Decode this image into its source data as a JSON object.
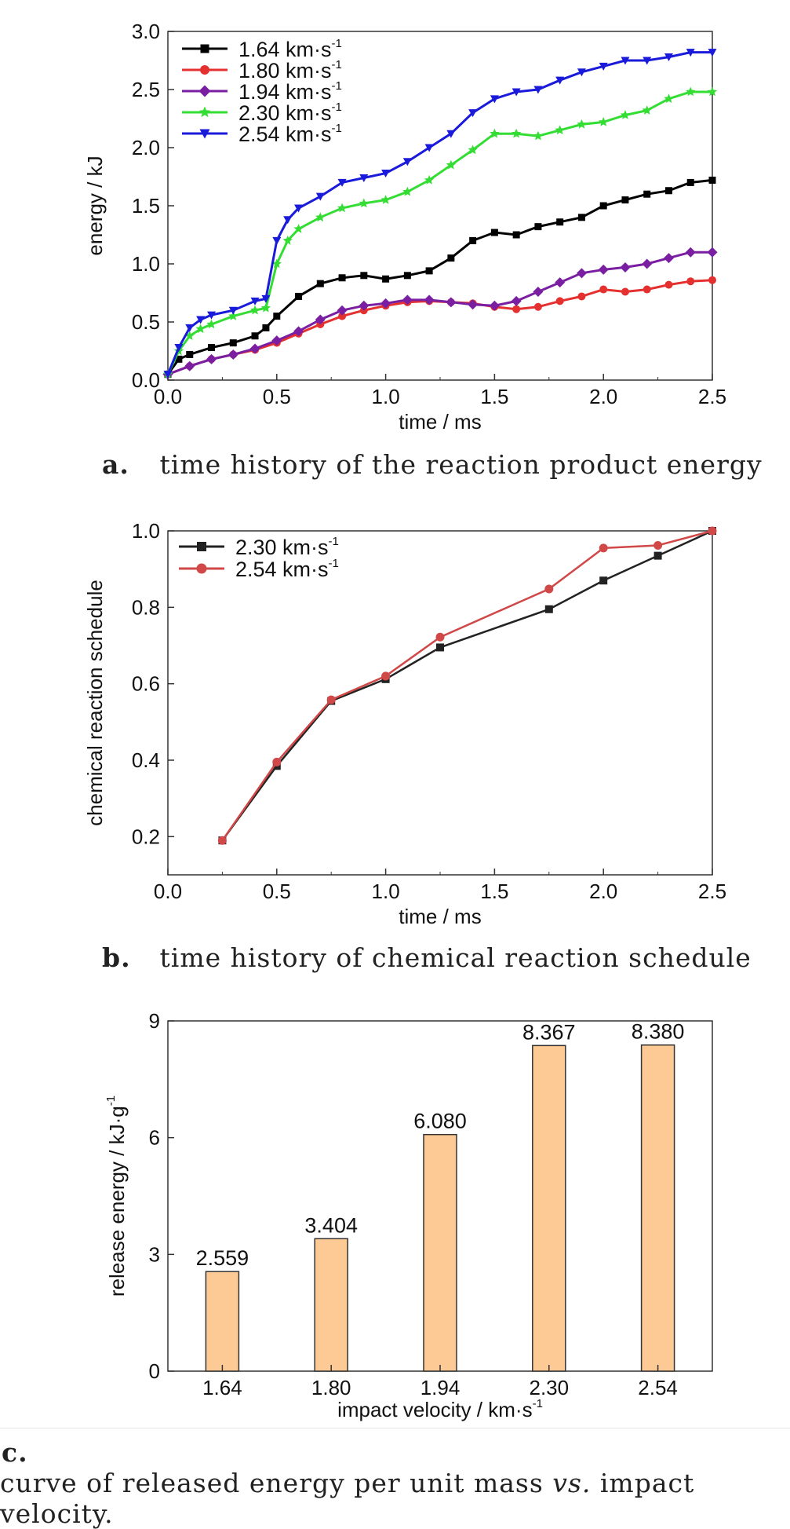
{
  "panels": [
    {
      "chart_data": {
        "type": "line",
        "xlabel": "time / ms",
        "ylabel": "energy / kJ",
        "xlim": [
          0,
          2.5
        ],
        "ylim": [
          0,
          3.0
        ],
        "xticks": [
          "0.0",
          "0.5",
          "1.0",
          "1.5",
          "2.0",
          "2.5"
        ],
        "yticks": [
          "0.0",
          "0.5",
          "1.0",
          "1.5",
          "2.0",
          "2.5",
          "3.0"
        ],
        "legend_position": "top-left",
        "series": [
          {
            "name": "1.64 km·s⁻¹",
            "color": "#000000",
            "marker": "square",
            "x": [
              0,
              0.05,
              0.1,
              0.2,
              0.3,
              0.4,
              0.45,
              0.5,
              0.6,
              0.7,
              0.8,
              0.9,
              1.0,
              1.1,
              1.2,
              1.3,
              1.4,
              1.5,
              1.6,
              1.7,
              1.8,
              1.9,
              2.0,
              2.1,
              2.2,
              2.3,
              2.4,
              2.5
            ],
            "y": [
              0.05,
              0.18,
              0.22,
              0.28,
              0.32,
              0.38,
              0.45,
              0.55,
              0.72,
              0.83,
              0.88,
              0.9,
              0.87,
              0.9,
              0.94,
              1.05,
              1.2,
              1.27,
              1.25,
              1.32,
              1.36,
              1.4,
              1.5,
              1.55,
              1.6,
              1.63,
              1.7,
              1.72
            ]
          },
          {
            "name": "1.80 km·s⁻¹",
            "color": "#e53030",
            "marker": "circle",
            "x": [
              0,
              0.1,
              0.2,
              0.3,
              0.4,
              0.5,
              0.6,
              0.7,
              0.8,
              0.9,
              1.0,
              1.1,
              1.2,
              1.3,
              1.4,
              1.5,
              1.6,
              1.7,
              1.8,
              1.9,
              2.0,
              2.1,
              2.2,
              2.3,
              2.4,
              2.5
            ],
            "y": [
              0.05,
              0.12,
              0.18,
              0.22,
              0.26,
              0.32,
              0.4,
              0.48,
              0.55,
              0.6,
              0.64,
              0.67,
              0.68,
              0.67,
              0.66,
              0.63,
              0.61,
              0.63,
              0.68,
              0.72,
              0.78,
              0.76,
              0.78,
              0.82,
              0.85,
              0.86
            ]
          },
          {
            "name": "1.94 km·s⁻¹",
            "color": "#7b1fa2",
            "marker": "diamond",
            "x": [
              0,
              0.1,
              0.2,
              0.3,
              0.4,
              0.5,
              0.6,
              0.7,
              0.8,
              0.9,
              1.0,
              1.1,
              1.2,
              1.3,
              1.4,
              1.5,
              1.6,
              1.7,
              1.8,
              1.9,
              2.0,
              2.1,
              2.2,
              2.3,
              2.4,
              2.5
            ],
            "y": [
              0.05,
              0.12,
              0.18,
              0.22,
              0.27,
              0.34,
              0.42,
              0.52,
              0.6,
              0.64,
              0.66,
              0.69,
              0.69,
              0.67,
              0.65,
              0.64,
              0.68,
              0.76,
              0.84,
              0.92,
              0.95,
              0.97,
              1.0,
              1.05,
              1.1,
              1.1
            ]
          },
          {
            "name": "2.30 km·s⁻¹",
            "color": "#33dd33",
            "marker": "star",
            "x": [
              0,
              0.05,
              0.1,
              0.15,
              0.2,
              0.3,
              0.4,
              0.45,
              0.5,
              0.55,
              0.6,
              0.7,
              0.8,
              0.9,
              1.0,
              1.1,
              1.2,
              1.3,
              1.4,
              1.5,
              1.6,
              1.7,
              1.8,
              1.9,
              2.0,
              2.1,
              2.2,
              2.3,
              2.4,
              2.5
            ],
            "y": [
              0.05,
              0.25,
              0.38,
              0.44,
              0.48,
              0.55,
              0.6,
              0.62,
              1.0,
              1.2,
              1.3,
              1.4,
              1.48,
              1.52,
              1.55,
              1.62,
              1.72,
              1.85,
              1.98,
              2.12,
              2.12,
              2.1,
              2.15,
              2.2,
              2.22,
              2.28,
              2.32,
              2.42,
              2.48,
              2.48
            ]
          },
          {
            "name": "2.54 km·s⁻¹",
            "color": "#1a1adb",
            "marker": "triangle-down",
            "x": [
              0,
              0.05,
              0.1,
              0.15,
              0.2,
              0.3,
              0.4,
              0.45,
              0.5,
              0.55,
              0.6,
              0.7,
              0.8,
              0.9,
              1.0,
              1.1,
              1.2,
              1.3,
              1.4,
              1.5,
              1.6,
              1.7,
              1.8,
              1.9,
              2.0,
              2.1,
              2.2,
              2.3,
              2.4,
              2.5
            ],
            "y": [
              0.05,
              0.28,
              0.45,
              0.52,
              0.56,
              0.6,
              0.68,
              0.7,
              1.2,
              1.38,
              1.48,
              1.58,
              1.7,
              1.74,
              1.78,
              1.88,
              2.0,
              2.12,
              2.3,
              2.42,
              2.48,
              2.5,
              2.58,
              2.65,
              2.7,
              2.75,
              2.75,
              2.78,
              2.82,
              2.82
            ]
          }
        ]
      },
      "caption_label": "a.",
      "caption_text": "time history of the reaction product energy"
    },
    {
      "chart_data": {
        "type": "line",
        "xlabel": "time / ms",
        "ylabel": "chemical reaction schedule",
        "xlim": [
          0,
          2.5
        ],
        "ylim": [
          0.1,
          1.0
        ],
        "xticks": [
          "0.0",
          "0.5",
          "1.0",
          "1.5",
          "2.0",
          "2.5"
        ],
        "yticks": [
          "0.2",
          "0.4",
          "0.6",
          "0.8",
          "1.0"
        ],
        "legend_position": "top-left",
        "series": [
          {
            "name": "2.30 km·s⁻¹",
            "color": "#222222",
            "marker": "square",
            "x": [
              0.25,
              0.5,
              0.75,
              1.0,
              1.25,
              1.75,
              2.0,
              2.25,
              2.5
            ],
            "y": [
              0.19,
              0.385,
              0.555,
              0.612,
              0.695,
              0.795,
              0.87,
              0.935,
              1.0
            ]
          },
          {
            "name": "2.54 km·s⁻¹",
            "color": "#d04848",
            "marker": "circle",
            "x": [
              0.25,
              0.5,
              0.75,
              1.0,
              1.25,
              1.75,
              2.0,
              2.25,
              2.5
            ],
            "y": [
              0.19,
              0.395,
              0.558,
              0.62,
              0.722,
              0.848,
              0.955,
              0.962,
              1.0
            ]
          }
        ]
      },
      "caption_label": "b.",
      "caption_text": "time history of chemical reaction schedule"
    },
    {
      "chart_data": {
        "type": "bar",
        "xlabel": "impact velocity / km·s⁻¹",
        "ylabel": "release energy / kJ·g⁻¹",
        "categories": [
          "1.64",
          "1.80",
          "1.94",
          "2.30",
          "2.54"
        ],
        "values": [
          2.559,
          3.404,
          6.08,
          8.367,
          8.38
        ],
        "value_labels": [
          "2.559",
          "3.404",
          "6.080",
          "8.367",
          "8.380"
        ],
        "ylim": [
          0,
          9
        ],
        "yticks": [
          "0",
          "3",
          "6",
          "9"
        ],
        "bar_color": "#fdc994"
      },
      "caption_label": "c.",
      "caption_pre": "curve of released energy per unit mass ",
      "caption_em": "vs.",
      "caption_post": " impact velocity."
    }
  ]
}
